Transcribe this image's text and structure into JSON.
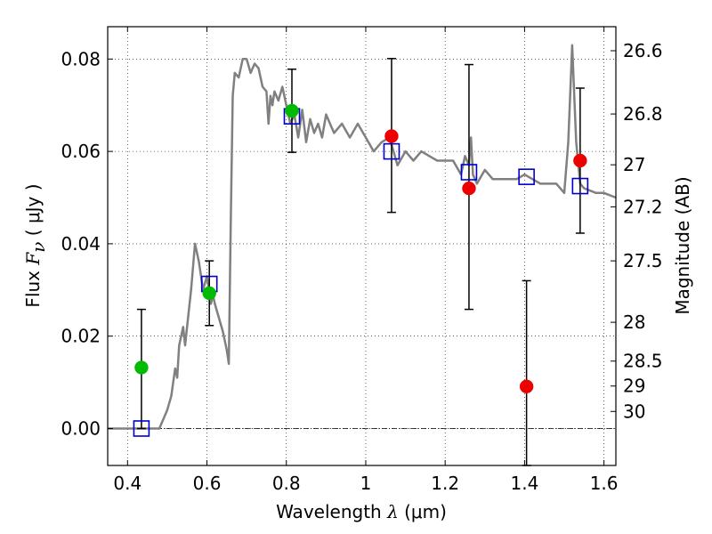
{
  "chart_data": {
    "type": "scatter",
    "xlabel": {
      "prefix": "Wavelength ",
      "symbol": "λ",
      "unit": " (μm)"
    },
    "ylabel": {
      "prefix": "Flux  ",
      "symbol": "F",
      "subscript": "ν",
      "unit": " (  μJy  )"
    },
    "ylabel_right": "Magnitude (AB)",
    "xlim": [
      0.35,
      1.63
    ],
    "ylim": [
      -0.008,
      0.087
    ],
    "x_ticks": [
      {
        "value": 0.4,
        "label": "0.4"
      },
      {
        "value": 0.6,
        "label": "0.6"
      },
      {
        "value": 0.8,
        "label": "0.8"
      },
      {
        "value": 1.0,
        "label": "1"
      },
      {
        "value": 1.2,
        "label": "1.2"
      },
      {
        "value": 1.4,
        "label": "1.4"
      },
      {
        "value": 1.6,
        "label": "1.6"
      }
    ],
    "y_ticks": [
      {
        "value": 0.0,
        "label": "0.00"
      },
      {
        "value": 0.02,
        "label": "0.02"
      },
      {
        "value": 0.04,
        "label": "0.04"
      },
      {
        "value": 0.06,
        "label": "0.06"
      },
      {
        "value": 0.08,
        "label": "0.08"
      }
    ],
    "mag_ticks": [
      {
        "value": 0.0818,
        "label": "26.6"
      },
      {
        "value": 0.0681,
        "label": "26.8"
      },
      {
        "value": 0.0571,
        "label": "27"
      },
      {
        "value": 0.048,
        "label": "27.2"
      },
      {
        "value": 0.0363,
        "label": "27.5"
      },
      {
        "value": 0.023,
        "label": "28"
      },
      {
        "value": 0.0146,
        "label": "28.5"
      },
      {
        "value": 0.0092,
        "label": "29"
      },
      {
        "value": 0.0037,
        "label": "30"
      }
    ],
    "grid": true,
    "zero_line": true,
    "series": [
      {
        "name": "model spectrum",
        "kind": "line",
        "color": "#808080",
        "x": [
          0.35,
          0.48,
          0.5,
          0.51,
          0.52,
          0.525,
          0.53,
          0.54,
          0.545,
          0.55,
          0.56,
          0.57,
          0.58,
          0.59,
          0.6,
          0.61,
          0.615,
          0.62,
          0.63,
          0.64,
          0.65,
          0.655,
          0.66,
          0.665,
          0.67,
          0.68,
          0.69,
          0.7,
          0.71,
          0.72,
          0.73,
          0.74,
          0.75,
          0.755,
          0.76,
          0.765,
          0.77,
          0.78,
          0.79,
          0.8,
          0.81,
          0.82,
          0.83,
          0.84,
          0.85,
          0.86,
          0.87,
          0.88,
          0.89,
          0.9,
          0.92,
          0.94,
          0.96,
          0.98,
          1.0,
          1.02,
          1.04,
          1.06,
          1.08,
          1.1,
          1.12,
          1.14,
          1.16,
          1.18,
          1.2,
          1.22,
          1.24,
          1.25,
          1.26,
          1.265,
          1.27,
          1.28,
          1.3,
          1.32,
          1.34,
          1.36,
          1.38,
          1.4,
          1.42,
          1.44,
          1.46,
          1.48,
          1.5,
          1.51,
          1.52,
          1.53,
          1.54,
          1.55,
          1.58,
          1.6,
          1.63
        ],
        "y": [
          0.0,
          0.0,
          0.004,
          0.007,
          0.013,
          0.011,
          0.018,
          0.022,
          0.018,
          0.022,
          0.03,
          0.04,
          0.036,
          0.03,
          0.033,
          0.027,
          0.029,
          0.027,
          0.024,
          0.021,
          0.017,
          0.014,
          0.045,
          0.072,
          0.077,
          0.076,
          0.08,
          0.08,
          0.077,
          0.079,
          0.078,
          0.074,
          0.073,
          0.066,
          0.072,
          0.07,
          0.073,
          0.071,
          0.074,
          0.07,
          0.066,
          0.068,
          0.063,
          0.069,
          0.062,
          0.067,
          0.064,
          0.066,
          0.063,
          0.068,
          0.064,
          0.066,
          0.063,
          0.066,
          0.063,
          0.06,
          0.062,
          0.063,
          0.057,
          0.06,
          0.058,
          0.06,
          0.059,
          0.058,
          0.058,
          0.058,
          0.055,
          0.059,
          0.057,
          0.063,
          0.055,
          0.053,
          0.056,
          0.054,
          0.054,
          0.054,
          0.054,
          0.055,
          0.054,
          0.053,
          0.053,
          0.053,
          0.051,
          0.062,
          0.083,
          0.062,
          0.053,
          0.052,
          0.051,
          0.051,
          0.05
        ]
      },
      {
        "name": "model photometry",
        "kind": "open-square",
        "color": "#0000cc",
        "x": [
          0.435,
          0.606,
          0.814,
          1.065,
          1.26,
          1.405,
          1.54
        ],
        "y": [
          0.0,
          0.0313,
          0.0676,
          0.06,
          0.0555,
          0.0545,
          0.0525
        ]
      },
      {
        "name": "observed optical",
        "kind": "filled-circle",
        "color": "#00bb00",
        "x": [
          0.435,
          0.606,
          0.814
        ],
        "y": [
          0.0132,
          0.0293,
          0.0688
        ]
      },
      {
        "name": "observed near-infrared",
        "kind": "filled-circle",
        "color": "#ee0000",
        "x": [
          1.065,
          1.26,
          1.405,
          1.54
        ],
        "y": [
          0.0633,
          0.052,
          0.0091,
          0.058
        ]
      },
      {
        "name": "error bars",
        "kind": "errorbar",
        "color": "#000000",
        "x": [
          0.435,
          0.606,
          0.814,
          1.065,
          1.26,
          1.405,
          1.54
        ],
        "y_low": [
          0.0,
          0.0223,
          0.0598,
          0.0468,
          0.0258,
          -0.008,
          0.0423
        ],
        "y_high": [
          0.0258,
          0.0363,
          0.0778,
          0.0801,
          0.0788,
          0.032,
          0.0737
        ]
      }
    ]
  }
}
